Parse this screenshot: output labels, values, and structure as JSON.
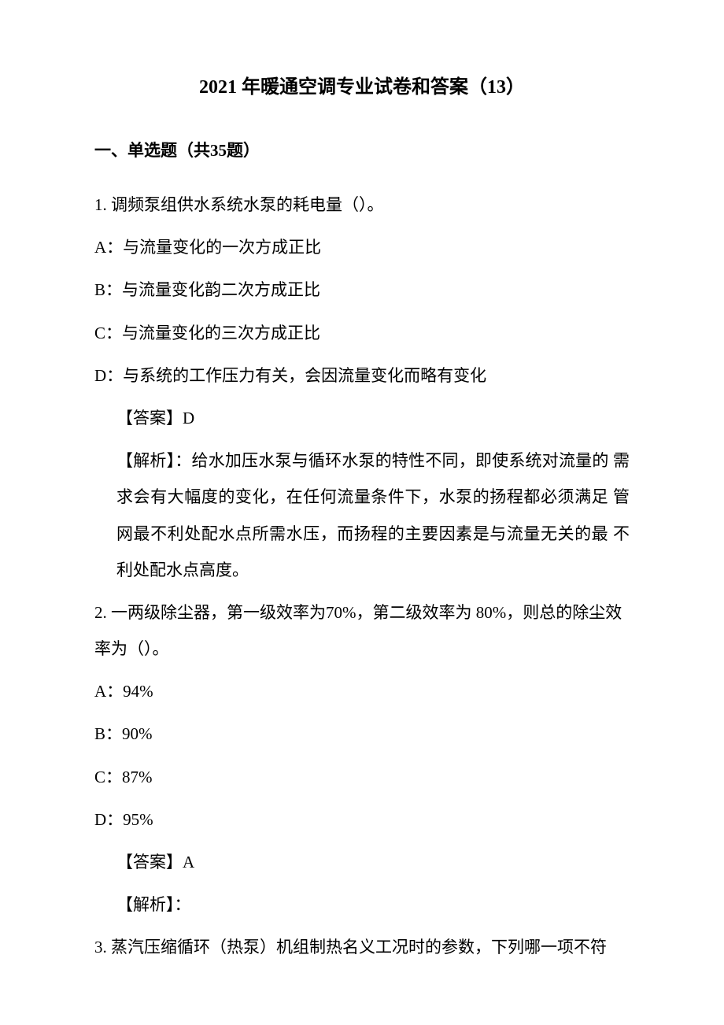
{
  "document": {
    "title": "2021 年暖通空调专业试卷和答案（13）",
    "section_header": "一、单选题（共35题）",
    "questions": [
      {
        "number": "1.",
        "text": "调频泵组供水系统水泵的耗电量（）。",
        "options": {
          "A": "A：与流量变化的一次方成正比",
          "B": "B：与流量变化韵二次方成正比",
          "C": "C：与流量变化的三次方成正比",
          "D": "D：与系统的工作压力有关，会因流量变化而略有变化"
        },
        "answer": "【答案】D",
        "explanation": "【解析】：给水加压水泵与循环水泵的特性不同，即使系统对流量的 需求会有大幅度的变化，在任何流量条件下，水泵的扬程都必须满足 管网最不利处配水点所需水压，而扬程的主要因素是与流量无关的最 不利处配水点高度。"
      },
      {
        "number": "2.",
        "text": "一两级除尘器，第一级效率为70%，第二级效率为 80%，则总的除尘效率为（）。",
        "options": {
          "A": "A：94%",
          "B": "B：90%",
          "C": "C：87%",
          "D": "D：95%"
        },
        "answer": "【答案】A",
        "explanation": "【解析】："
      },
      {
        "number": "3.",
        "text": "蒸汽压缩循环（热泵）机组制热名义工况时的参数，下列哪一项不符"
      }
    ]
  },
  "styling": {
    "background_color": "#ffffff",
    "text_color": "#000000",
    "title_fontsize": 24,
    "body_fontsize": 21,
    "line_height": 2.2,
    "font_family": "SimSun"
  }
}
